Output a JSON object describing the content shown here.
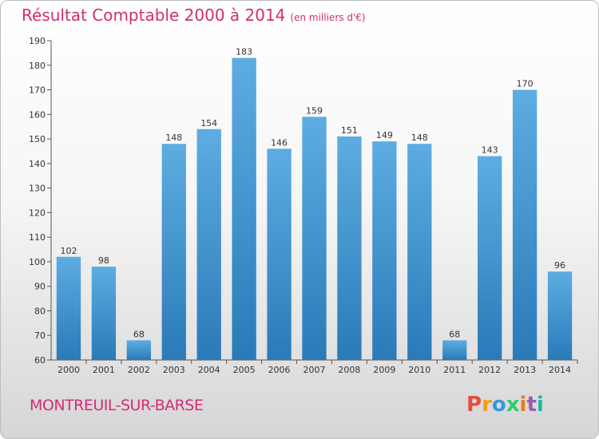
{
  "header": {
    "title": "Résultat Comptable 2000 à 2014",
    "subtitle": "(en milliers d'€)"
  },
  "footer": {
    "commune": "MONTREUIL-SUR-BARSE",
    "logo_text": "Proxiti"
  },
  "colors": {
    "title": "#d22e73",
    "bar_top": "#5dade2",
    "bar_bottom": "#2a7ab9",
    "logo_letters": [
      "#e74c3c",
      "#f39c12",
      "#3498db",
      "#2ecc71",
      "#e67e22",
      "#9b59b6",
      "#1abc9c"
    ]
  },
  "chart_data": {
    "type": "bar",
    "title": "Résultat Comptable 2000 à 2014",
    "subtitle": "(en milliers d'€)",
    "xlabel": "",
    "ylabel": "",
    "categories": [
      "2000",
      "2001",
      "2002",
      "2003",
      "2004",
      "2005",
      "2006",
      "2007",
      "2008",
      "2009",
      "2010",
      "2011",
      "2012",
      "2013",
      "2014"
    ],
    "values": [
      102,
      98,
      68,
      148,
      154,
      183,
      146,
      159,
      151,
      149,
      148,
      68,
      143,
      170,
      96
    ],
    "ylim": [
      60,
      190
    ],
    "yticks": [
      60,
      70,
      80,
      90,
      100,
      110,
      120,
      130,
      140,
      150,
      160,
      170,
      180,
      190
    ],
    "grid": false,
    "legend": "none",
    "data_labels": true
  }
}
